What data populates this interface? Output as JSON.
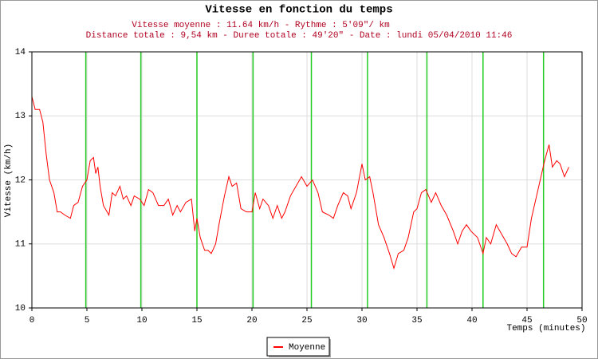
{
  "chart_data": {
    "type": "line",
    "title": "Vitesse en fonction du temps",
    "subtitle": [
      "Vitesse moyenne : 11.64 km/h - Rythme : 5'09\"/ km",
      "Distance totale : 9,54 km - Duree totale : 49'20\" - Date : lundi 05/04/2010 11:46"
    ],
    "xlabel": "Temps (minutes)",
    "ylabel": "Vitesse (km/h)",
    "xlim": [
      0,
      50
    ],
    "ylim": [
      10,
      14
    ],
    "xticks": [
      0,
      5,
      10,
      15,
      20,
      25,
      30,
      35,
      40,
      45,
      50
    ],
    "yticks": [
      10,
      11,
      12,
      13,
      14
    ],
    "grid": true,
    "markers": [
      4.9,
      9.9,
      15.0,
      20.1,
      25.4,
      30.5,
      35.9,
      41.0,
      46.5
    ],
    "marker_color": "#22cc22",
    "series": [
      {
        "name": "Moyenne",
        "color": "#ff0000",
        "x": [
          0,
          0.3,
          0.7,
          1,
          1.3,
          1.6,
          2,
          2.3,
          2.6,
          3,
          3.5,
          3.8,
          4.2,
          4.6,
          5,
          5.3,
          5.6,
          5.8,
          6,
          6.2,
          6.5,
          7,
          7.3,
          7.6,
          8,
          8.3,
          8.6,
          9,
          9.3,
          9.8,
          10.2,
          10.6,
          11,
          11.5,
          12,
          12.4,
          12.8,
          13.2,
          13.5,
          14,
          14.5,
          14.8,
          15,
          15.3,
          15.7,
          16,
          16.3,
          16.7,
          17,
          17.5,
          17.9,
          18.2,
          18.6,
          19,
          19.5,
          20,
          20.3,
          20.7,
          21,
          21.5,
          21.9,
          22.3,
          22.7,
          23,
          23.5,
          24,
          24.5,
          25,
          25.5,
          26,
          26.4,
          27,
          27.4,
          27.8,
          28.3,
          28.7,
          29,
          29.5,
          30,
          30.3,
          30.7,
          31,
          31.5,
          32,
          32.5,
          32.9,
          33.3,
          33.8,
          34.2,
          34.7,
          35,
          35.4,
          35.8,
          36.3,
          36.7,
          37.2,
          37.7,
          38.3,
          38.7,
          39.1,
          39.5,
          39.9,
          40.5,
          41,
          41.3,
          41.7,
          42.2,
          42.7,
          43.2,
          43.6,
          44,
          44.5,
          45,
          45.4,
          45.8,
          46.2,
          46.6,
          47,
          47.3,
          47.7,
          48,
          48.4,
          48.8
        ],
        "values": [
          13.3,
          13.1,
          13.1,
          12.9,
          12.4,
          12.0,
          11.8,
          11.5,
          11.5,
          11.45,
          11.4,
          11.6,
          11.65,
          11.9,
          12.0,
          12.3,
          12.35,
          12.1,
          12.2,
          11.9,
          11.6,
          11.45,
          11.8,
          11.75,
          11.9,
          11.7,
          11.75,
          11.6,
          11.75,
          11.7,
          11.6,
          11.85,
          11.8,
          11.6,
          11.6,
          11.7,
          11.45,
          11.6,
          11.5,
          11.65,
          11.7,
          11.2,
          11.4,
          11.1,
          10.9,
          10.9,
          10.85,
          11.0,
          11.3,
          11.75,
          12.05,
          11.9,
          11.95,
          11.55,
          11.5,
          11.5,
          11.8,
          11.55,
          11.7,
          11.6,
          11.4,
          11.6,
          11.4,
          11.5,
          11.75,
          11.9,
          12.05,
          11.9,
          12.0,
          11.8,
          11.5,
          11.45,
          11.4,
          11.6,
          11.8,
          11.75,
          11.55,
          11.8,
          12.25,
          12.0,
          12.05,
          11.8,
          11.3,
          11.1,
          10.85,
          10.62,
          10.85,
          10.9,
          11.1,
          11.5,
          11.55,
          11.8,
          11.85,
          11.65,
          11.8,
          11.6,
          11.45,
          11.2,
          11.0,
          11.2,
          11.3,
          11.2,
          11.1,
          10.85,
          11.1,
          11.0,
          11.3,
          11.15,
          11.0,
          10.85,
          10.8,
          10.95,
          10.95,
          11.4,
          11.7,
          12.0,
          12.3,
          12.55,
          12.2,
          12.3,
          12.25,
          12.05,
          12.2
        ]
      }
    ]
  }
}
